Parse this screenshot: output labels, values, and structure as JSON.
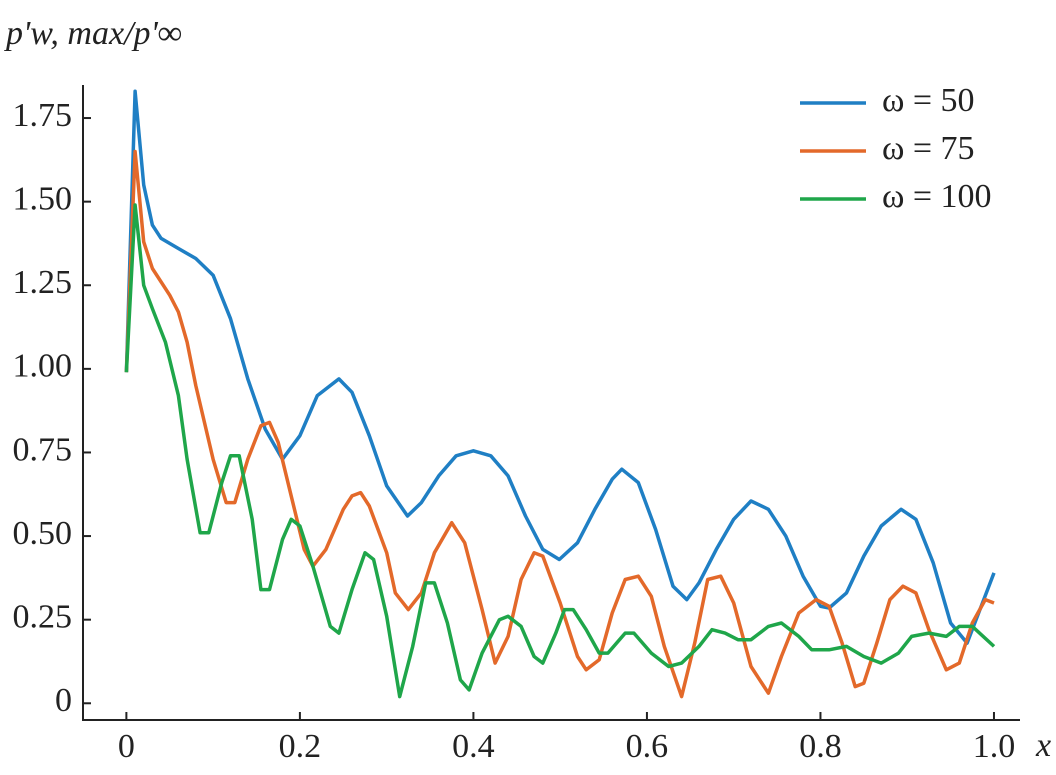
{
  "chart_data": {
    "type": "line",
    "ylabel": "p'w, max/p'∞",
    "xlabel": "x",
    "xlim": [
      -0.05,
      1.03
    ],
    "ylim": [
      -0.05,
      1.85
    ],
    "xticks": [
      0,
      0.2,
      0.4,
      0.6,
      0.8,
      {
        "value": 1,
        "label": "1.0"
      }
    ],
    "yticks": [
      0,
      0.25,
      {
        "value": 0.5,
        "label": "0.50"
      },
      0.75,
      {
        "value": 1,
        "label": "1.00"
      },
      1.25,
      {
        "value": 1.5,
        "label": "1.50"
      },
      1.75
    ],
    "legend": "upper right",
    "series": [
      {
        "name": "ω = 50",
        "color": "#1f7fc4",
        "x": [
          0,
          0.01,
          0.02,
          0.03,
          0.04,
          0.06,
          0.08,
          0.1,
          0.12,
          0.14,
          0.16,
          0.18,
          0.2,
          0.22,
          0.245,
          0.26,
          0.28,
          0.3,
          0.324,
          0.34,
          0.36,
          0.38,
          0.4,
          0.42,
          0.44,
          0.46,
          0.48,
          0.499,
          0.52,
          0.54,
          0.56,
          0.571,
          0.59,
          0.61,
          0.63,
          0.646,
          0.66,
          0.68,
          0.7,
          0.72,
          0.74,
          0.76,
          0.78,
          0.8,
          0.81,
          0.83,
          0.85,
          0.87,
          0.893,
          0.91,
          0.93,
          0.95,
          0.969,
          1.0
        ],
        "values": [
          0.99,
          1.83,
          1.55,
          1.43,
          1.39,
          1.36,
          1.33,
          1.28,
          1.15,
          0.97,
          0.82,
          0.73,
          0.8,
          0.92,
          0.97,
          0.93,
          0.8,
          0.65,
          0.56,
          0.6,
          0.68,
          0.74,
          0.755,
          0.74,
          0.68,
          0.56,
          0.46,
          0.43,
          0.48,
          0.58,
          0.67,
          0.7,
          0.66,
          0.52,
          0.35,
          0.31,
          0.36,
          0.46,
          0.55,
          0.605,
          0.58,
          0.5,
          0.38,
          0.29,
          0.285,
          0.33,
          0.44,
          0.53,
          0.58,
          0.55,
          0.42,
          0.24,
          0.18,
          0.39
        ]
      },
      {
        "name": "ω = 75",
        "color": "#e3692a",
        "x": [
          0,
          0.01,
          0.02,
          0.03,
          0.05,
          0.06,
          0.07,
          0.08,
          0.1,
          0.115,
          0.125,
          0.14,
          0.155,
          0.165,
          0.175,
          0.19,
          0.205,
          0.215,
          0.23,
          0.25,
          0.26,
          0.27,
          0.28,
          0.3,
          0.31,
          0.325,
          0.34,
          0.355,
          0.375,
          0.39,
          0.41,
          0.425,
          0.44,
          0.455,
          0.47,
          0.48,
          0.5,
          0.52,
          0.53,
          0.545,
          0.56,
          0.575,
          0.59,
          0.605,
          0.62,
          0.64,
          0.655,
          0.67,
          0.685,
          0.7,
          0.72,
          0.74,
          0.755,
          0.775,
          0.795,
          0.81,
          0.825,
          0.84,
          0.85,
          0.865,
          0.88,
          0.895,
          0.91,
          0.925,
          0.945,
          0.96,
          0.975,
          0.99,
          1.0
        ],
        "values": [
          0.99,
          1.65,
          1.38,
          1.3,
          1.22,
          1.17,
          1.08,
          0.95,
          0.73,
          0.6,
          0.6,
          0.73,
          0.83,
          0.84,
          0.78,
          0.62,
          0.46,
          0.41,
          0.46,
          0.58,
          0.62,
          0.63,
          0.59,
          0.45,
          0.33,
          0.28,
          0.33,
          0.45,
          0.54,
          0.48,
          0.28,
          0.12,
          0.2,
          0.37,
          0.45,
          0.44,
          0.3,
          0.14,
          0.1,
          0.13,
          0.27,
          0.37,
          0.38,
          0.32,
          0.17,
          0.02,
          0.18,
          0.37,
          0.38,
          0.3,
          0.11,
          0.03,
          0.14,
          0.27,
          0.31,
          0.29,
          0.18,
          0.05,
          0.06,
          0.18,
          0.31,
          0.35,
          0.33,
          0.22,
          0.1,
          0.12,
          0.24,
          0.31,
          0.3
        ]
      },
      {
        "name": "ω = 100",
        "color": "#1fa64a",
        "x": [
          0,
          0.01,
          0.02,
          0.03,
          0.045,
          0.06,
          0.07,
          0.085,
          0.095,
          0.11,
          0.12,
          0.13,
          0.145,
          0.155,
          0.165,
          0.18,
          0.19,
          0.2,
          0.215,
          0.235,
          0.245,
          0.26,
          0.275,
          0.285,
          0.3,
          0.315,
          0.33,
          0.345,
          0.355,
          0.37,
          0.385,
          0.395,
          0.41,
          0.43,
          0.44,
          0.455,
          0.47,
          0.48,
          0.495,
          0.505,
          0.515,
          0.53,
          0.545,
          0.555,
          0.575,
          0.585,
          0.605,
          0.625,
          0.64,
          0.66,
          0.675,
          0.69,
          0.705,
          0.72,
          0.74,
          0.755,
          0.775,
          0.79,
          0.81,
          0.83,
          0.85,
          0.87,
          0.89,
          0.905,
          0.925,
          0.945,
          0.96,
          0.975,
          1.0
        ],
        "values": [
          0.99,
          1.49,
          1.25,
          1.18,
          1.08,
          0.92,
          0.73,
          0.51,
          0.51,
          0.66,
          0.74,
          0.74,
          0.55,
          0.34,
          0.34,
          0.49,
          0.55,
          0.53,
          0.41,
          0.23,
          0.21,
          0.34,
          0.45,
          0.43,
          0.26,
          0.02,
          0.17,
          0.36,
          0.36,
          0.24,
          0.07,
          0.04,
          0.15,
          0.25,
          0.26,
          0.23,
          0.14,
          0.12,
          0.21,
          0.28,
          0.28,
          0.22,
          0.15,
          0.15,
          0.21,
          0.21,
          0.15,
          0.11,
          0.12,
          0.17,
          0.22,
          0.21,
          0.19,
          0.19,
          0.23,
          0.24,
          0.2,
          0.16,
          0.16,
          0.17,
          0.14,
          0.12,
          0.15,
          0.2,
          0.21,
          0.2,
          0.23,
          0.23,
          0.17
        ]
      }
    ]
  }
}
